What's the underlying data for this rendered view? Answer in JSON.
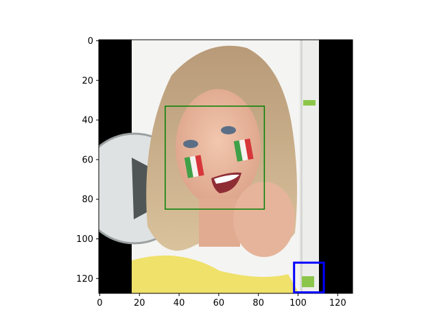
{
  "chart_data": {
    "type": "image",
    "title": "",
    "xlabel": "",
    "ylabel": "",
    "xlim": [
      -0.5,
      127.5
    ],
    "ylim": [
      127.5,
      -0.5
    ],
    "y_axis_inverted": true,
    "x_ticks": [
      0,
      20,
      40,
      60,
      80,
      100,
      120
    ],
    "y_ticks": [
      0,
      20,
      40,
      60,
      80,
      100,
      120
    ],
    "image": {
      "description": "photo of smiling blonde woman with Italian flag face paint, soccer ball at left",
      "letterbox_columns": {
        "left": [
          0,
          16
        ],
        "right": [
          111,
          127
        ]
      }
    },
    "boxes": [
      {
        "name": "face",
        "color": "#008000",
        "x0": 33,
        "y0": 33,
        "x1": 83,
        "y1": 85
      },
      {
        "name": "logo",
        "color": "#0000ff",
        "x0": 98,
        "y0": 112,
        "x1": 113,
        "y1": 127
      }
    ]
  }
}
